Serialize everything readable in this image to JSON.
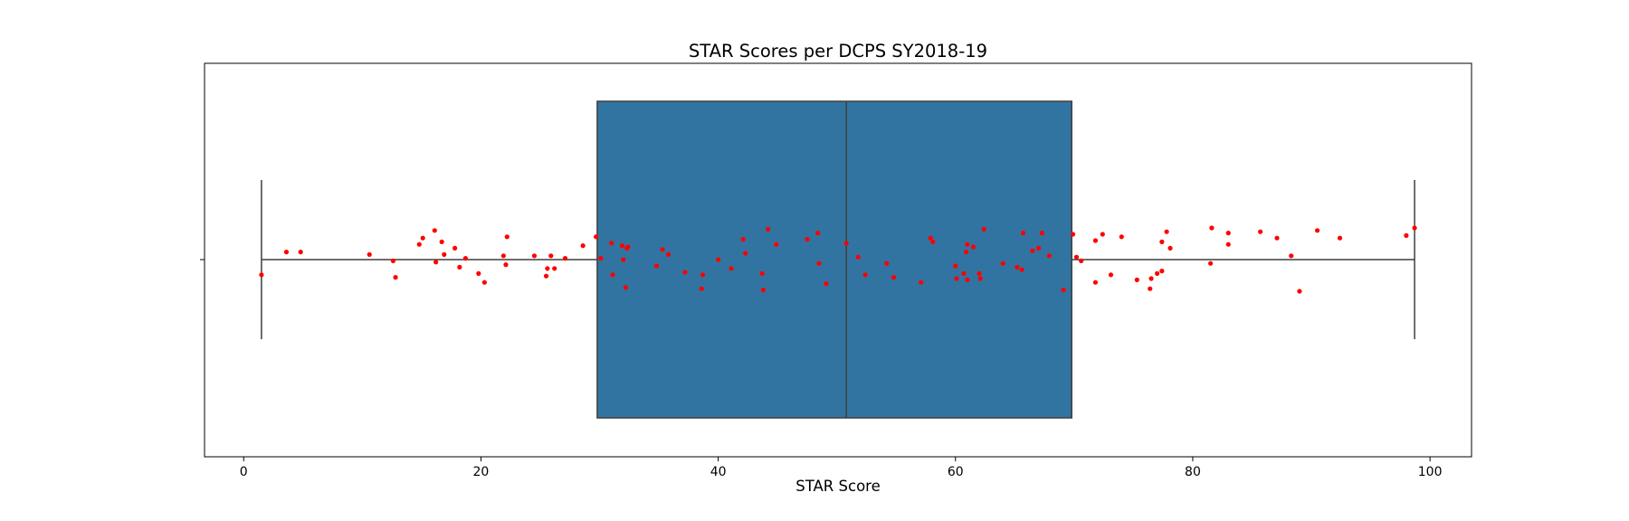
{
  "chart_data": {
    "type": "box",
    "title": "STAR Scores per DCPS SY2018-19",
    "xlabel": "STAR Score",
    "ylabel": "",
    "xlim": [
      -3.3,
      103.5
    ],
    "x_ticks": [
      0,
      20,
      40,
      60,
      80,
      100
    ],
    "grid": false,
    "box": {
      "min": 1.5,
      "q1": 29.8,
      "median": 50.8,
      "q3": 69.8,
      "max": 98.7,
      "color": "#3274a1",
      "edge_color": "#3f3f3f"
    },
    "points": {
      "color": "#ff0000",
      "data": [
        {
          "x": 1.5,
          "y": 0.12
        },
        {
          "x": 3.6,
          "y": -0.06
        },
        {
          "x": 4.8,
          "y": -0.06
        },
        {
          "x": 10.6,
          "y": -0.04
        },
        {
          "x": 12.6,
          "y": 0.01
        },
        {
          "x": 12.8,
          "y": 0.14
        },
        {
          "x": 14.8,
          "y": -0.12
        },
        {
          "x": 15.1,
          "y": -0.17
        },
        {
          "x": 16.1,
          "y": -0.23
        },
        {
          "x": 16.2,
          "y": 0.02
        },
        {
          "x": 16.7,
          "y": -0.14
        },
        {
          "x": 16.9,
          "y": -0.04
        },
        {
          "x": 17.8,
          "y": -0.09
        },
        {
          "x": 18.2,
          "y": 0.06
        },
        {
          "x": 18.7,
          "y": -0.01
        },
        {
          "x": 19.8,
          "y": 0.11
        },
        {
          "x": 20.3,
          "y": 0.18
        },
        {
          "x": 21.9,
          "y": -0.03
        },
        {
          "x": 22.1,
          "y": 0.04
        },
        {
          "x": 22.2,
          "y": -0.18
        },
        {
          "x": 24.5,
          "y": -0.03
        },
        {
          "x": 25.5,
          "y": 0.13
        },
        {
          "x": 25.6,
          "y": 0.07
        },
        {
          "x": 25.9,
          "y": -0.03
        },
        {
          "x": 26.2,
          "y": 0.07
        },
        {
          "x": 27.1,
          "y": -0.01
        },
        {
          "x": 28.6,
          "y": -0.11
        },
        {
          "x": 29.7,
          "y": -0.18
        },
        {
          "x": 30.1,
          "y": -0.01
        },
        {
          "x": 31.0,
          "y": -0.13
        },
        {
          "x": 31.1,
          "y": 0.12
        },
        {
          "x": 31.9,
          "y": -0.11
        },
        {
          "x": 32.0,
          "y": 0.0
        },
        {
          "x": 32.2,
          "y": 0.22
        },
        {
          "x": 32.3,
          "y": -0.09
        },
        {
          "x": 32.4,
          "y": -0.1
        },
        {
          "x": 34.8,
          "y": 0.05
        },
        {
          "x": 35.3,
          "y": -0.08
        },
        {
          "x": 35.8,
          "y": -0.04
        },
        {
          "x": 37.2,
          "y": 0.1
        },
        {
          "x": 38.6,
          "y": 0.23
        },
        {
          "x": 38.7,
          "y": 0.12
        },
        {
          "x": 40.0,
          "y": 0.0
        },
        {
          "x": 41.1,
          "y": 0.07
        },
        {
          "x": 42.1,
          "y": -0.16
        },
        {
          "x": 42.3,
          "y": -0.05
        },
        {
          "x": 43.7,
          "y": 0.11
        },
        {
          "x": 43.8,
          "y": 0.24
        },
        {
          "x": 44.2,
          "y": -0.24
        },
        {
          "x": 44.9,
          "y": -0.12
        },
        {
          "x": 47.5,
          "y": -0.16
        },
        {
          "x": 48.4,
          "y": -0.21
        },
        {
          "x": 48.5,
          "y": 0.03
        },
        {
          "x": 49.1,
          "y": 0.19
        },
        {
          "x": 50.8,
          "y": -0.13
        },
        {
          "x": 51.8,
          "y": -0.02
        },
        {
          "x": 52.4,
          "y": 0.12
        },
        {
          "x": 54.2,
          "y": 0.03
        },
        {
          "x": 54.8,
          "y": 0.14
        },
        {
          "x": 57.1,
          "y": 0.18
        },
        {
          "x": 57.9,
          "y": -0.17
        },
        {
          "x": 58.1,
          "y": -0.14
        },
        {
          "x": 60.0,
          "y": 0.05
        },
        {
          "x": 60.1,
          "y": 0.15
        },
        {
          "x": 60.7,
          "y": 0.11
        },
        {
          "x": 60.9,
          "y": -0.06
        },
        {
          "x": 61.0,
          "y": -0.12
        },
        {
          "x": 61.0,
          "y": 0.16
        },
        {
          "x": 61.5,
          "y": -0.1
        },
        {
          "x": 62.0,
          "y": 0.11
        },
        {
          "x": 62.1,
          "y": 0.15
        },
        {
          "x": 62.4,
          "y": -0.24
        },
        {
          "x": 64.0,
          "y": 0.03
        },
        {
          "x": 65.2,
          "y": 0.06
        },
        {
          "x": 65.6,
          "y": 0.08
        },
        {
          "x": 65.7,
          "y": -0.21
        },
        {
          "x": 66.5,
          "y": -0.07
        },
        {
          "x": 67.0,
          "y": -0.09
        },
        {
          "x": 67.3,
          "y": -0.21
        },
        {
          "x": 67.9,
          "y": -0.03
        },
        {
          "x": 69.1,
          "y": 0.24
        },
        {
          "x": 69.9,
          "y": -0.2
        },
        {
          "x": 70.2,
          "y": -0.02
        },
        {
          "x": 70.6,
          "y": 0.01
        },
        {
          "x": 71.8,
          "y": 0.18
        },
        {
          "x": 71.8,
          "y": -0.15
        },
        {
          "x": 72.4,
          "y": -0.2
        },
        {
          "x": 73.1,
          "y": 0.12
        },
        {
          "x": 74.0,
          "y": -0.18
        },
        {
          "x": 75.3,
          "y": 0.16
        },
        {
          "x": 76.4,
          "y": 0.23
        },
        {
          "x": 76.5,
          "y": 0.15
        },
        {
          "x": 77.0,
          "y": 0.11
        },
        {
          "x": 77.4,
          "y": 0.09
        },
        {
          "x": 77.4,
          "y": -0.14
        },
        {
          "x": 77.8,
          "y": -0.22
        },
        {
          "x": 78.1,
          "y": -0.09
        },
        {
          "x": 81.5,
          "y": 0.03
        },
        {
          "x": 81.6,
          "y": -0.25
        },
        {
          "x": 83.0,
          "y": -0.21
        },
        {
          "x": 83.0,
          "y": -0.12
        },
        {
          "x": 85.7,
          "y": -0.22
        },
        {
          "x": 87.1,
          "y": -0.17
        },
        {
          "x": 88.3,
          "y": -0.03
        },
        {
          "x": 89.0,
          "y": 0.25
        },
        {
          "x": 90.5,
          "y": -0.23
        },
        {
          "x": 92.4,
          "y": -0.17
        },
        {
          "x": 98.0,
          "y": -0.19
        },
        {
          "x": 98.7,
          "y": -0.25
        }
      ]
    }
  }
}
